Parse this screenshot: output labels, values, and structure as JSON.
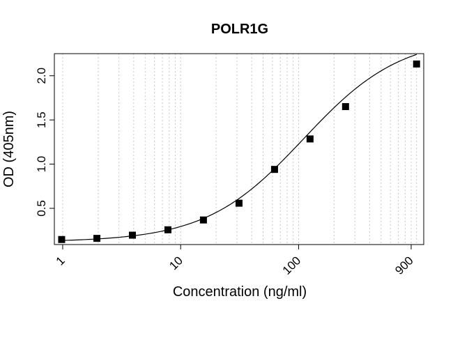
{
  "chart_data": {
    "type": "scatter",
    "title": "POLR1G",
    "xlabel": "Concentration (ng/ml)",
    "ylabel": "OD (405nm)",
    "x_scale": "log",
    "xlim": [
      0.85,
      1150
    ],
    "ylim": [
      0.09,
      2.25
    ],
    "x_ticks": [
      1,
      10,
      100,
      900
    ],
    "x_tick_labels": [
      "1",
      "10",
      "100",
      "900"
    ],
    "y_ticks": [
      0.5,
      1.0,
      1.5,
      2.0
    ],
    "y_tick_labels": [
      "0.5",
      "1.0",
      "1.5",
      "2.0"
    ],
    "grid": "vertical-dotted",
    "series": [
      {
        "marker": "square",
        "x": [
          0.98,
          1.95,
          3.9,
          7.8,
          15.6,
          31.25,
          62.5,
          125,
          250,
          1000
        ],
        "y": [
          0.147,
          0.16,
          0.196,
          0.257,
          0.368,
          0.558,
          0.94,
          1.285,
          1.651,
          2.133
        ]
      }
    ],
    "fit_curve": {
      "type": "4PL",
      "bottom": 0.12,
      "top": 2.45,
      "ec50": 110,
      "hill": 1.05
    }
  }
}
